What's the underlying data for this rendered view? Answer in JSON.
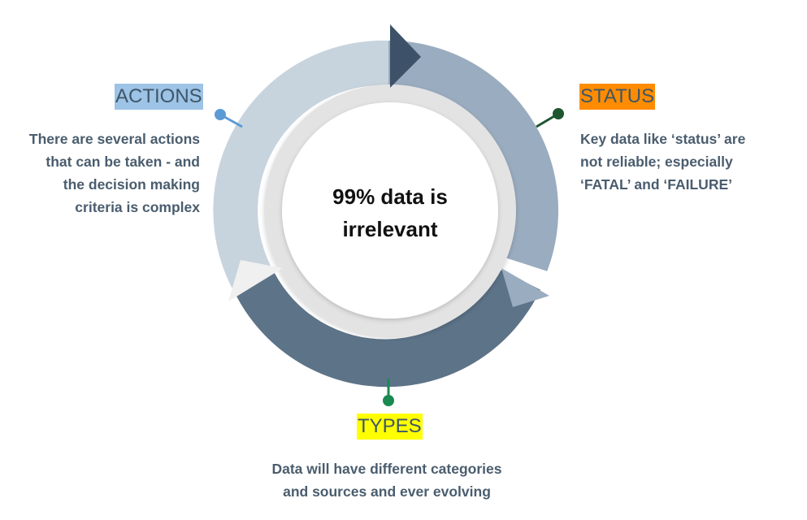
{
  "center": {
    "line1": "99% data is",
    "line2": "irrelevant"
  },
  "actions": {
    "label": "ACTIONS",
    "color": "#9dc3e6",
    "lines": [
      "There are several actions",
      "that can be taken - and",
      "the decision making",
      "criteria is complex"
    ]
  },
  "status": {
    "label": "STATUS",
    "color": "#ff8c00",
    "lines": [
      "Key data like  ‘status’ are",
      "not reliable; especially",
      "‘FATAL’ and ‘FAILURE’"
    ]
  },
  "types": {
    "label": "TYPES",
    "color": "#ffff00",
    "lines": [
      "Data will have different categories",
      "and sources and ever evolving"
    ]
  },
  "colors": {
    "segment_light": "#c7d4de",
    "segment_mid": "#9aacbf",
    "segment_dark": "#5d7388",
    "arrow_top": "#3d5168",
    "arrow_left": "#f0f0f0",
    "inner_ring": "#e3e3e3"
  }
}
